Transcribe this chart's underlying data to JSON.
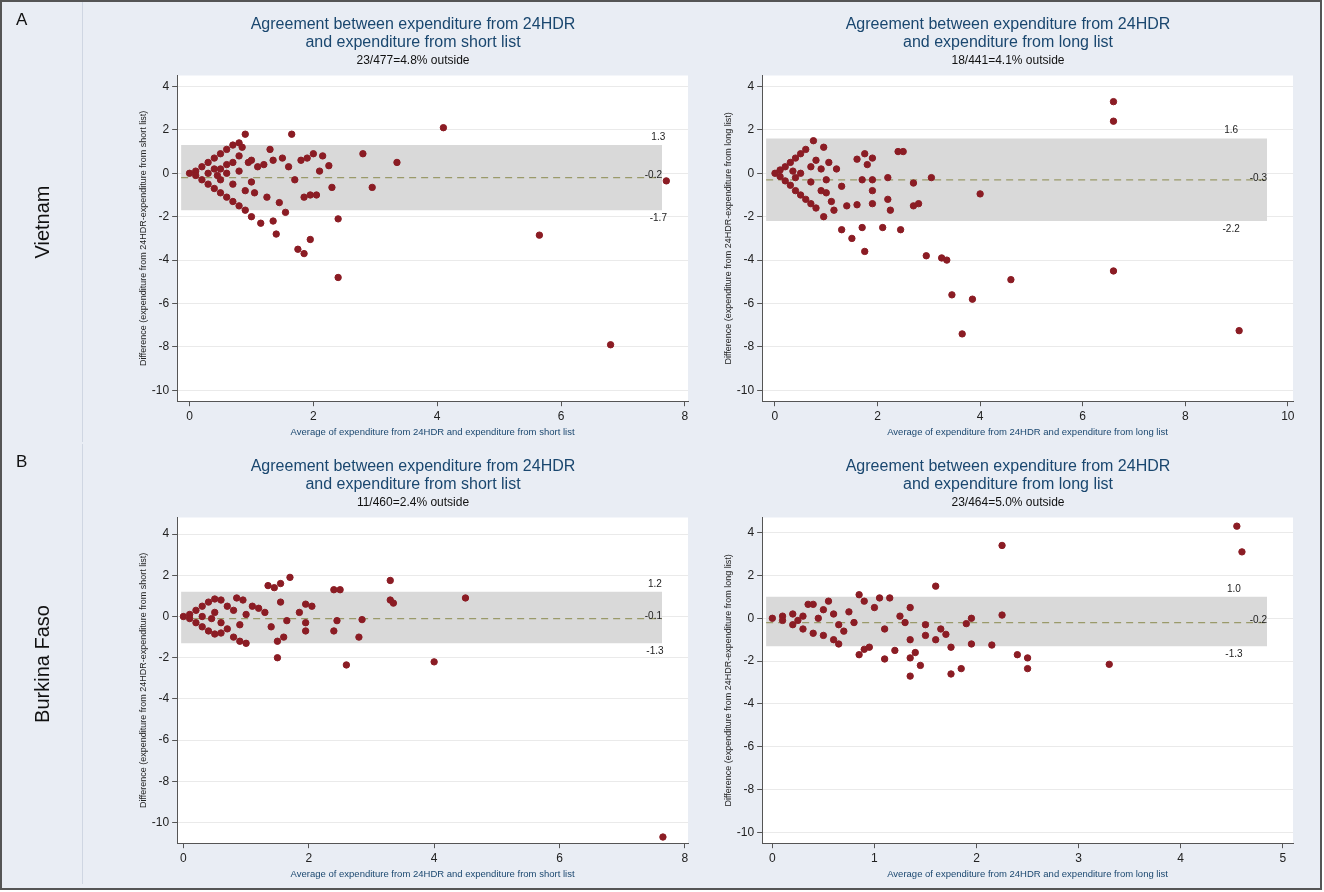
{
  "chart_data": [
    {
      "type": "scatter",
      "title": "Agreement between expenditure from 24HDR and expenditure from short list",
      "subtitle": "23/477=4.8% outside",
      "xlabel": "Average of expenditure from 24HDR and expenditure from short list",
      "ylabel": "Difference (expenditure from 24HDR-expenditure from short list)",
      "color": "#8b1c24",
      "marker": "circle",
      "grid": "y",
      "xlim": [
        -0.2,
        8.05
      ],
      "ylim": [
        -10.5,
        4.5
      ],
      "xticks": [
        0,
        2,
        4,
        6,
        8
      ],
      "yticks": [
        -10,
        -8,
        -6,
        -4,
        -2,
        0,
        2,
        4
      ],
      "x": [
        0.9,
        1.65,
        4.1,
        2.8,
        3.35,
        7.7,
        2.95,
        2.4,
        5.65,
        1.95,
        1.75,
        1.85,
        2.4,
        6.8,
        1.35,
        1.4,
        1.15,
        1.0,
        1.55,
        1.3,
        1.5,
        1.6,
        1.8,
        2.0,
        2.15,
        2.25,
        2.3,
        2.1,
        1.9,
        1.85,
        1.95,
        2.05,
        1.7,
        1.25,
        1.35,
        1.45,
        1.2,
        1.1,
        1.05,
        0.95,
        0,
        0.1,
        0.2,
        0.3,
        0.4,
        0.5,
        0.6,
        0.7,
        0.8,
        0.85,
        0.1,
        0.2,
        0.3,
        0.4,
        0.5,
        0.6,
        0.7,
        0.8,
        0.9,
        0.3,
        0.5,
        0.5,
        0.6,
        0.7,
        0.8,
        0.9,
        1.0,
        0.6,
        0.8,
        0.4,
        0.45,
        0.7,
        1.0
      ],
      "values": [
        1.8,
        1.8,
        2.1,
        0.9,
        0.5,
        -0.35,
        -0.65,
        -2.1,
        -2.85,
        -3.05,
        -3.5,
        -3.7,
        -4.8,
        -7.9,
        -2.2,
        -2.8,
        -2.3,
        -2.0,
        -1.8,
        1.1,
        0.7,
        0.3,
        0.6,
        0.9,
        0.8,
        0.35,
        -0.65,
        0.1,
        0.7,
        -1.1,
        -1.0,
        -1.0,
        -0.3,
        -1.1,
        0.6,
        -1.35,
        0.4,
        0.3,
        -0.9,
        0.5,
        0,
        0.1,
        0.3,
        0.5,
        0.7,
        0.9,
        1.1,
        1.3,
        1.4,
        1.2,
        -0.1,
        -0.3,
        -0.5,
        -0.7,
        -0.9,
        -1.1,
        -1.3,
        -1.5,
        -1.7,
        0,
        0.2,
        -0.3,
        0.4,
        -0.5,
        0.8,
        -0.8,
        0.6,
        0,
        0.1,
        0.2,
        -0.1,
        0.5,
        -0.4
      ],
      "bands": [
        {
          "axis": "y",
          "from": -1.7,
          "to": 1.3,
          "color": "#d9d9d9"
        }
      ],
      "ref_lines": [
        {
          "axis": "y",
          "value": -0.2,
          "label": "-0.2",
          "line_style": "dashed",
          "color": "#9a9a6a"
        }
      ],
      "annotations": [
        "A",
        "Vietnam",
        {
          "text": "1.3",
          "x": 7.7,
          "y": 1.3
        },
        {
          "text": "-1.7",
          "x": 7.7,
          "y": -1.7
        }
      ]
    },
    {
      "type": "scatter",
      "title": "Agreement between expenditure from 24HDR and expenditure from long list",
      "subtitle": "18/441=4.1% outside",
      "xlabel": "Average of expenditure from 24HDR and expenditure from long list",
      "ylabel": "Difference (expenditure from 24HDR-expenditure from long list)",
      "color": "#8b1c24",
      "marker": "circle",
      "grid": "y",
      "xlim": [
        -0.25,
        10.1
      ],
      "ylim": [
        -10.5,
        4.5
      ],
      "xticks": [
        0,
        2,
        4,
        6,
        8,
        10
      ],
      "yticks": [
        -10,
        -8,
        -6,
        -4,
        -2,
        0,
        2,
        4
      ],
      "x": [
        6.6,
        6.6,
        0.75,
        0.95,
        2.4,
        2.5,
        1.75,
        1.9,
        1.6,
        3.05,
        2.2,
        2.7,
        4.0,
        2.2,
        2.25,
        2.7,
        2.8,
        0.95,
        1.3,
        1.5,
        1.7,
        1.75,
        2.1,
        2.45,
        2.95,
        3.25,
        3.35,
        3.45,
        3.65,
        3.85,
        4.6,
        6.6,
        9.05,
        1.15,
        1.4,
        1.6,
        1.9,
        1.9,
        1.9,
        1.7,
        1.8,
        1.2,
        1.3,
        1.05,
        1.1,
        1.0,
        0,
        0.1,
        0.2,
        0.3,
        0.4,
        0.5,
        0.6,
        0.1,
        0.2,
        0.3,
        0.4,
        0.5,
        0.6,
        0.7,
        0.8,
        0.5,
        0.7,
        0.7,
        0.8,
        0.9,
        0.9,
        0.35,
        0.4,
        1.0
      ],
      "values": [
        3.3,
        2.4,
        1.5,
        1.2,
        1.0,
        1.0,
        0.9,
        0.7,
        0.65,
        -0.2,
        -0.2,
        -0.45,
        -0.95,
        -1.2,
        -1.7,
        -1.5,
        -1.4,
        -2.0,
        -2.6,
        -3.0,
        -2.5,
        -3.6,
        -2.5,
        -2.6,
        -3.8,
        -3.9,
        -4.0,
        -5.6,
        -7.4,
        -5.8,
        -4.9,
        -4.5,
        -7.25,
        -1.7,
        -1.5,
        -1.45,
        -1.4,
        -0.8,
        -0.3,
        -0.3,
        0.4,
        0.2,
        -0.6,
        0.5,
        -1.3,
        -0.9,
        0,
        0.15,
        0.3,
        0.5,
        0.7,
        0.9,
        1.1,
        -0.15,
        -0.35,
        -0.55,
        -0.8,
        -1.0,
        -1.2,
        -1.4,
        -1.6,
        0,
        0.3,
        -0.4,
        0.6,
        -0.8,
        0.2,
        0.1,
        -0.2,
        -0.3
      ],
      "bands": [
        {
          "axis": "y",
          "from": -2.2,
          "to": 1.6,
          "color": "#d9d9d9"
        }
      ],
      "ref_lines": [
        {
          "axis": "y",
          "value": -0.3,
          "label": "-0.3",
          "line_style": "dashed",
          "color": "#9a9a6a"
        }
      ],
      "annotations": [
        {
          "text": "1.6",
          "x": 9.05,
          "y": 1.6
        },
        {
          "text": "-2.2",
          "x": 9.05,
          "y": -2.2
        }
      ]
    },
    {
      "type": "scatter",
      "title": "Agreement between expenditure from 24HDR and expenditure from short list",
      "subtitle": "11/460=2.4% outside",
      "xlabel": "Average of expenditure from 24HDR and expenditure from short list",
      "ylabel": "Difference (expenditure from 24HDR-expenditure from short list)",
      "color": "#8b1c24",
      "marker": "circle",
      "grid": "y",
      "xlim": [
        -0.1,
        8.05
      ],
      "ylim": [
        -11,
        4.8
      ],
      "xticks": [
        0,
        2,
        4,
        6,
        8
      ],
      "yticks": [
        -10,
        -8,
        -6,
        -4,
        -2,
        0,
        2,
        4
      ],
      "x": [
        1.7,
        1.55,
        1.35,
        1.45,
        2.4,
        2.5,
        3.3,
        3.3,
        3.35,
        4.5,
        1.85,
        1.95,
        2.05,
        2.85,
        2.45,
        2.4,
        2.8,
        1.95,
        1.95,
        1.5,
        2.6,
        4.0,
        7.65,
        1.5,
        1.6,
        1.4,
        1.55,
        1.65,
        1.2,
        1.3,
        1.0,
        0.9,
        0.8,
        1.1,
        0.95,
        0.85,
        0,
        0.1,
        0.2,
        0.3,
        0.4,
        0.5,
        0.6,
        0.1,
        0.2,
        0.3,
        0.4,
        0.5,
        0.6,
        0.7,
        0.3,
        0.5,
        0.6,
        0.7,
        0.8,
        0.9,
        1.0,
        0.45
      ],
      "values": [
        1.9,
        1.6,
        1.5,
        1.4,
        1.3,
        1.3,
        1.75,
        0.8,
        0.65,
        0.9,
        0.2,
        0.6,
        0.5,
        -0.15,
        -0.2,
        -0.7,
        -1.0,
        -0.7,
        -0.3,
        -2.0,
        -2.35,
        -2.2,
        -10.7,
        -1.2,
        -1.0,
        -0.5,
        0.7,
        -0.2,
        0.4,
        0.2,
        -1.3,
        -1.2,
        -1.0,
        0.5,
        0.8,
        0.9,
        0,
        0.1,
        0.3,
        0.5,
        0.7,
        0.85,
        0.8,
        -0.1,
        -0.3,
        -0.5,
        -0.7,
        -0.85,
        -0.8,
        -0.6,
        0,
        0.2,
        -0.3,
        0.5,
        0.3,
        -0.4,
        0.1,
        -0.1
      ],
      "bands": [
        {
          "axis": "y",
          "from": -1.3,
          "to": 1.2,
          "color": "#d9d9d9"
        }
      ],
      "ref_lines": [
        {
          "axis": "y",
          "value": -0.1,
          "label": "-0.1",
          "line_style": "dashed",
          "color": "#9a9a6a"
        }
      ],
      "annotations": [
        "B",
        "Burkina Faso",
        {
          "text": "1.2",
          "x": 7.65,
          "y": 1.2
        },
        {
          "text": "-1.3",
          "x": 7.65,
          "y": -1.3
        }
      ]
    },
    {
      "type": "scatter",
      "title": "Agreement between expenditure from 24HDR and expenditure from long list",
      "subtitle": "23/464=5.0% outside",
      "xlabel": "Average of expenditure from 24HDR and expenditure from long list",
      "ylabel": "Difference (expenditure from 24HDR-expenditure from long list)",
      "color": "#8b1c24",
      "marker": "circle",
      "grid": "y",
      "xlim": [
        -0.1,
        5.1
      ],
      "ylim": [
        -10.5,
        4.7
      ],
      "xticks": [
        0,
        1,
        2,
        3,
        4,
        5
      ],
      "yticks": [
        -10,
        -8,
        -6,
        -4,
        -2,
        0,
        2,
        4
      ],
      "x": [
        2.25,
        4.55,
        4.6,
        1.6,
        2.25,
        1.95,
        1.9,
        1.5,
        1.65,
        1.95,
        2.15,
        1.75,
        1.7,
        2.4,
        2.5,
        2.5,
        3.3,
        1.85,
        1.75,
        1.45,
        1.35,
        1.4,
        1.35,
        1.1,
        1.2,
        0.85,
        0.9,
        0.95,
        1.05,
        1.15,
        0.85,
        1.35,
        1.25,
        1.3,
        1.35,
        1.5,
        1.6,
        1.1,
        1.0,
        0.9,
        0.75,
        0.7,
        0,
        0.1,
        0.2,
        0.35,
        0.4,
        0.55,
        0.1,
        0.2,
        0.3,
        0.4,
        0.5,
        0.6,
        0.65,
        0.3,
        0.45,
        0.5,
        0.6,
        0.65,
        0.8,
        0.25
      ],
      "values": [
        3.4,
        4.3,
        3.1,
        1.5,
        0.15,
        0.0,
        -0.25,
        -0.3,
        -0.5,
        -1.2,
        -1.25,
        -1.35,
        -0.75,
        -1.7,
        -1.85,
        -2.35,
        -2.15,
        -2.35,
        -2.6,
        -2.2,
        -2.7,
        -1.6,
        -1.85,
        -1.9,
        -1.5,
        -1.7,
        -1.45,
        -1.35,
        0.95,
        0.95,
        1.1,
        0.5,
        0.1,
        -0.2,
        -1.0,
        -0.8,
        -1.0,
        -0.5,
        0.5,
        0.8,
        0.3,
        -0.6,
        0,
        0.1,
        0.2,
        0.65,
        0.65,
        0.8,
        -0.1,
        -0.3,
        -0.5,
        -0.7,
        -0.8,
        -1.0,
        -1.2,
        0.1,
        0,
        0.4,
        0.2,
        -0.3,
        -0.2,
        -0.1
      ],
      "bands": [
        {
          "axis": "y",
          "from": -1.3,
          "to": 1.0,
          "color": "#d9d9d9"
        }
      ],
      "ref_lines": [
        {
          "axis": "y",
          "value": -0.2,
          "label": "-0.2",
          "line_style": "dashed",
          "color": "#9a9a6a"
        }
      ],
      "annotations": [
        {
          "text": "1.0",
          "x": 4.6,
          "y": 1.0
        },
        {
          "text": "-1.3",
          "x": 4.6,
          "y": -1.3
        }
      ]
    }
  ]
}
